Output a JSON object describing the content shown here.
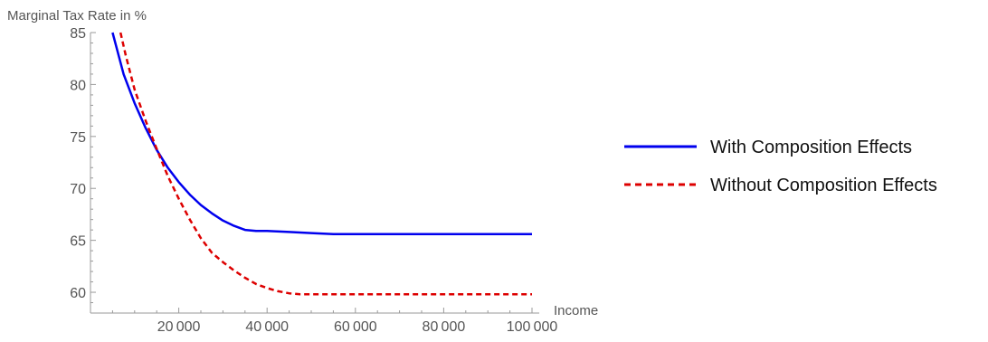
{
  "chart_data": {
    "type": "line",
    "title": "",
    "xlabel": "Income",
    "ylabel": "Marginal Tax Rate in %",
    "xlim": [
      0,
      100000
    ],
    "ylim": [
      58,
      85
    ],
    "x_ticks": [
      20000,
      40000,
      60000,
      80000,
      100000
    ],
    "x_tick_labels": [
      "20 000",
      "40 000",
      "60 000",
      "80 000",
      "100 000"
    ],
    "y_ticks": [
      60,
      65,
      70,
      75,
      80,
      85
    ],
    "y_tick_labels": [
      "60",
      "65",
      "70",
      "75",
      "80",
      "85"
    ],
    "grid": false,
    "legend_position": "right",
    "series": [
      {
        "name": "With Composition Effects",
        "color": "#0000ee",
        "style": "solid",
        "x": [
          5000,
          7500,
          10000,
          12500,
          15000,
          17500,
          20000,
          22500,
          25000,
          27500,
          30000,
          32500,
          35000,
          37500,
          40000,
          45000,
          50000,
          55000,
          60000,
          70000,
          80000,
          90000,
          100000
        ],
        "y": [
          85.0,
          81.0,
          78.2,
          75.8,
          73.7,
          72.0,
          70.6,
          69.4,
          68.4,
          67.6,
          66.9,
          66.4,
          66.0,
          65.9,
          65.9,
          65.8,
          65.7,
          65.6,
          65.6,
          65.6,
          65.6,
          65.6,
          65.6
        ]
      },
      {
        "name": "Without Composition Effects",
        "color": "#dd0000",
        "style": "dashed",
        "x": [
          6800,
          8000,
          10000,
          12500,
          15000,
          17500,
          20000,
          22500,
          25000,
          27500,
          30000,
          32500,
          35000,
          37500,
          40000,
          42500,
          45000,
          47500,
          50000,
          55000,
          60000,
          70000,
          80000,
          90000,
          100000
        ],
        "y": [
          85.0,
          82.8,
          79.5,
          76.5,
          73.8,
          71.2,
          69.0,
          67.0,
          65.2,
          63.8,
          62.9,
          62.1,
          61.4,
          60.8,
          60.4,
          60.1,
          59.9,
          59.8,
          59.8,
          59.8,
          59.8,
          59.8,
          59.8,
          59.8,
          59.8
        ]
      }
    ]
  }
}
